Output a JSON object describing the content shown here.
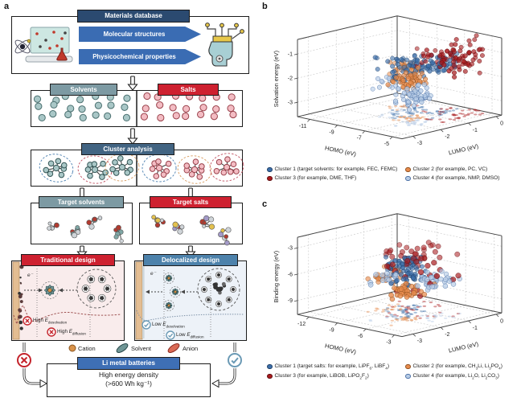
{
  "panels": {
    "a": {
      "label": "a",
      "materials_header": "Materials database",
      "pipeline_arrows": [
        "Molecular structures",
        "Physicochemical properties"
      ],
      "solvents_header": "Solvents",
      "salts_header": "Salts",
      "cluster_header": "Cluster analysis",
      "target_solvents_header": "Target solvents",
      "target_salts_header": "Target salts",
      "traditional_header": "Traditional design",
      "delocalized_header": "Delocalized design",
      "electron_label": "e⁻",
      "design_labels": [
        {
          "prefix": "High ",
          "symbol": "E",
          "subscript": "desolvation"
        },
        {
          "prefix": "High ",
          "symbol": "E",
          "subscript": "diffusion"
        },
        {
          "prefix": "Low ",
          "symbol": "E",
          "subscript": "desolvation"
        },
        {
          "prefix": "Low ",
          "symbol": "E",
          "subscript": "diffusion"
        }
      ],
      "species_legend": {
        "cation": "Cation",
        "solvent": "Solvent",
        "anion": "Anion"
      },
      "li_header": "Li metal batteries",
      "energy_density_line1": "High energy density",
      "energy_density_line2": "(>600 Wh kg⁻¹)"
    },
    "b": {
      "label": "b"
    },
    "c": {
      "label": "c"
    }
  },
  "chart_data": [
    {
      "panel": "b",
      "type": "scatter",
      "projection": "3d",
      "xlabel": "HOMO (eV)",
      "ylabel": "LUMO (eV)",
      "zlabel": "Solvation energy (eV)",
      "x_range": [
        -11.9,
        -4.3
      ],
      "x_ticks": [
        -5,
        -7,
        -9,
        -11
      ],
      "y_range": [
        -3.4,
        0.2
      ],
      "y_ticks": [
        -3,
        -2,
        -1,
        0
      ],
      "z_range": [
        -3.6,
        -0.4
      ],
      "z_ticks": [
        -1,
        -2,
        -3
      ],
      "grid": true,
      "legend_position": "below",
      "clusters": [
        {
          "name": "Cluster 1",
          "color": "#3c6ea9",
          "edge": "#1d3f66",
          "seed": 11,
          "size": 3.0,
          "groups": [
            [
              -8.2,
              -1.05,
              -1.7,
              1.1,
              0.7,
              0.45,
              68
            ],
            [
              -6.9,
              -0.7,
              -1.55,
              0.6,
              0.5,
              0.3,
              38
            ]
          ]
        },
        {
          "name": "Cluster 2",
          "color": "#e78b4d",
          "edge": "#8f4f1d",
          "seed": 22,
          "size": 3.0,
          "groups": [
            [
              -7.2,
              -1.6,
              -2.0,
              0.55,
              0.45,
              0.3,
              52
            ],
            [
              -9.4,
              -0.9,
              -2.0,
              0.5,
              0.35,
              0.3,
              22
            ]
          ]
        },
        {
          "name": "Cluster 3",
          "color": "#a81a1d",
          "edge": "#5e0d0f",
          "seed": 33,
          "size": 3.0,
          "groups": [
            [
              -5.9,
              -0.65,
              -1.2,
              0.8,
              0.8,
              0.55,
              66
            ],
            [
              -7.7,
              -0.45,
              -1.55,
              1.2,
              0.5,
              0.5,
              20
            ]
          ]
        },
        {
          "name": "Cluster 4",
          "color": "#b7cce6",
          "edge": "#4a6fa5",
          "seed": 44,
          "size": 3.0,
          "groups": [
            [
              -6.4,
              -1.9,
              -2.5,
              0.7,
              0.6,
              0.45,
              56
            ],
            [
              -8.6,
              -1.5,
              -2.3,
              0.8,
              0.5,
              0.4,
              24
            ]
          ]
        }
      ],
      "legend": [
        "Cluster 1 (target solvents: for example, FEC, FEMC)",
        "Cluster 2 (for example, PC, VC)",
        "Cluster 3 (for example, DME, THF)",
        "Cluster 4 (for example, NMP, DMSO)"
      ]
    },
    {
      "panel": "c",
      "type": "scatter",
      "projection": "3d",
      "xlabel": "HOMO (eV)",
      "ylabel": "LUMO (eV)",
      "zlabel": "Binding energy (eV)",
      "x_range": [
        -13.2,
        -2.2
      ],
      "x_ticks": [
        -3,
        -6,
        -9,
        -12
      ],
      "y_range": [
        -3.4,
        0.2
      ],
      "y_ticks": [
        -3,
        -2,
        -1,
        0
      ],
      "z_range": [
        -10.6,
        -1.8
      ],
      "z_ticks": [
        -3,
        -6,
        -9
      ],
      "grid": true,
      "legend_position": "below",
      "clusters": [
        {
          "name": "Cluster 1",
          "color": "#3c6ea9",
          "edge": "#1d3f66",
          "seed": 55,
          "size": 3.0,
          "groups": [
            [
              -8.3,
              -1.2,
              -5.3,
              1.2,
              0.6,
              0.7,
              55
            ],
            [
              -6.5,
              -1.6,
              -6.3,
              0.7,
              0.5,
              0.6,
              25
            ]
          ]
        },
        {
          "name": "Cluster 2",
          "color": "#e78b4d",
          "edge": "#8f4f1d",
          "seed": 66,
          "size": 3.2,
          "groups": [
            [
              -9.2,
              -1.5,
              -6.6,
              0.8,
              0.5,
              0.7,
              30
            ],
            [
              -5.8,
              -2.0,
              -7.3,
              0.8,
              0.5,
              0.7,
              40
            ]
          ]
        },
        {
          "name": "Cluster 3",
          "color": "#a81a1d",
          "edge": "#5e0d0f",
          "seed": 77,
          "size": 3.6,
          "groups": [
            [
              -8.5,
              -0.9,
              -4.6,
              2.0,
              0.9,
              0.9,
              40
            ],
            [
              -5.5,
              -1.5,
              -6.0,
              1.5,
              0.8,
              1.5,
              15
            ]
          ]
        },
        {
          "name": "Cluster 4",
          "color": "#b7cce6",
          "edge": "#4a6fa5",
          "seed": 88,
          "size": 3.2,
          "groups": [
            [
              -4.8,
              -1.3,
              -6.4,
              0.9,
              0.6,
              0.8,
              35
            ],
            [
              -7.5,
              -2.2,
              -6.0,
              0.8,
              0.4,
              0.5,
              15
            ]
          ]
        }
      ],
      "legend": [
        "Cluster 1 (target salts: for example, LiPF~6~, LiBF~4~)",
        "Cluster 2 (for example, CH~3~Li, Li~3~PO~4~)",
        "Cluster 3 (for example, LiBOB, LiPO~2~F~2~)",
        "Cluster 4 (for example, Li~2~O, Li~2~CO~3~)"
      ]
    }
  ]
}
